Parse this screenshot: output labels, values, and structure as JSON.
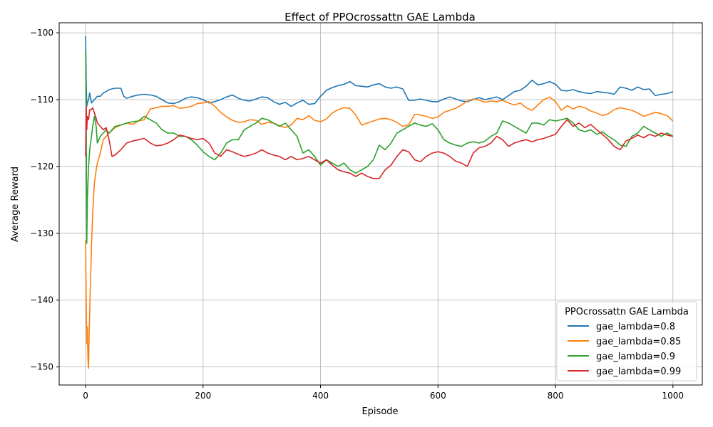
{
  "chart_data": {
    "type": "line",
    "title": "Effect of PPOcrossattn GAE Lambda",
    "xlabel": "Episode",
    "ylabel": "Average Reward",
    "xlim": [
      -45,
      1050
    ],
    "ylim": [
      -152.7,
      -98.5
    ],
    "xticks": [
      0,
      200,
      400,
      600,
      800,
      1000
    ],
    "xtick_labels": [
      "0",
      "200",
      "400",
      "600",
      "800",
      "1000"
    ],
    "yticks": [
      -150,
      -140,
      -130,
      -120,
      -110,
      -100
    ],
    "ytick_labels": [
      "−150",
      "−140",
      "−130",
      "−120",
      "−110",
      "−100"
    ],
    "grid": true,
    "legend": {
      "title": "PPOcrossattn GAE Lambda",
      "position": "lower-right"
    },
    "series": [
      {
        "name": "gae_lambda=0.8",
        "color": "#1f77b4",
        "x": [
          0,
          1,
          2,
          3,
          5,
          7,
          10,
          15,
          20,
          25,
          30,
          35,
          40,
          50,
          60,
          65,
          70,
          80,
          90,
          100,
          110,
          120,
          130,
          140,
          150,
          160,
          170,
          180,
          190,
          200,
          210,
          220,
          230,
          240,
          250,
          260,
          270,
          280,
          290,
          300,
          310,
          320,
          330,
          340,
          350,
          360,
          370,
          380,
          390,
          400,
          410,
          420,
          430,
          440,
          450,
          460,
          470,
          480,
          490,
          500,
          510,
          520,
          530,
          540,
          550,
          560,
          570,
          580,
          590,
          600,
          610,
          620,
          630,
          640,
          650,
          660,
          670,
          680,
          690,
          700,
          710,
          720,
          730,
          740,
          750,
          760,
          770,
          780,
          790,
          800,
          810,
          820,
          830,
          840,
          850,
          860,
          870,
          880,
          890,
          900,
          910,
          920,
          930,
          940,
          950,
          960,
          970,
          980,
          990,
          1000
        ],
        "y": [
          -100.5,
          -107.0,
          -111.0,
          -110.5,
          -110.0,
          -109.0,
          -110.5,
          -110.0,
          -109.5,
          -109.5,
          -109.0,
          -108.8,
          -108.5,
          -108.3,
          -108.3,
          -109.5,
          -109.8,
          -109.5,
          -109.3,
          -109.2,
          -109.3,
          -109.5,
          -110.0,
          -110.5,
          -110.6,
          -110.3,
          -109.8,
          -109.6,
          -109.7,
          -110.0,
          -110.5,
          -110.3,
          -110.0,
          -109.6,
          -109.3,
          -109.8,
          -110.1,
          -110.2,
          -109.9,
          -109.6,
          -109.7,
          -110.3,
          -110.7,
          -110.4,
          -111.0,
          -110.5,
          -110.1,
          -110.7,
          -110.6,
          -109.5,
          -108.6,
          -108.2,
          -107.9,
          -107.7,
          -107.3,
          -107.9,
          -108.0,
          -108.1,
          -107.8,
          -107.6,
          -108.1,
          -108.3,
          -108.1,
          -108.4,
          -110.1,
          -110.1,
          -109.9,
          -110.1,
          -110.3,
          -110.3,
          -109.9,
          -109.6,
          -109.9,
          -110.2,
          -110.3,
          -110.0,
          -109.7,
          -110.0,
          -109.8,
          -109.6,
          -110.0,
          -109.4,
          -108.8,
          -108.6,
          -108.0,
          -107.1,
          -107.8,
          -107.6,
          -107.3,
          -107.7,
          -108.6,
          -108.7,
          -108.5,
          -108.8,
          -109.0,
          -109.1,
          -108.8,
          -108.9,
          -109.0,
          -109.2,
          -108.1,
          -108.3,
          -108.6,
          -108.1,
          -108.5,
          -108.4,
          -109.4,
          -109.2,
          -109.1,
          -108.8
        ]
      },
      {
        "name": "gae_lambda=0.85",
        "color": "#ff7f0e",
        "x": [
          0,
          1,
          2,
          3,
          4,
          5,
          6,
          8,
          10,
          12,
          15,
          18,
          20,
          25,
          30,
          40,
          50,
          60,
          70,
          80,
          90,
          100,
          110,
          120,
          130,
          140,
          150,
          160,
          170,
          180,
          190,
          200,
          210,
          220,
          230,
          240,
          250,
          260,
          270,
          280,
          290,
          300,
          310,
          320,
          330,
          340,
          350,
          360,
          370,
          380,
          390,
          400,
          410,
          420,
          430,
          440,
          450,
          460,
          470,
          480,
          490,
          500,
          510,
          520,
          530,
          540,
          550,
          560,
          570,
          580,
          590,
          600,
          610,
          620,
          630,
          640,
          650,
          660,
          670,
          680,
          690,
          700,
          710,
          720,
          730,
          740,
          750,
          760,
          770,
          780,
          790,
          800,
          810,
          820,
          830,
          840,
          850,
          860,
          870,
          880,
          890,
          900,
          910,
          920,
          930,
          940,
          950,
          960,
          970,
          980,
          990,
          1000
        ],
        "y": [
          -131.0,
          -140.0,
          -146.5,
          -144.0,
          -149.0,
          -150.2,
          -145.0,
          -138.0,
          -132.0,
          -127.0,
          -122.5,
          -120.5,
          -119.5,
          -118.0,
          -116.0,
          -115.0,
          -114.2,
          -113.8,
          -113.5,
          -113.7,
          -113.2,
          -113.0,
          -111.4,
          -111.2,
          -111.0,
          -111.0,
          -110.9,
          -111.3,
          -111.2,
          -111.0,
          -110.6,
          -110.5,
          -110.3,
          -111.0,
          -111.9,
          -112.6,
          -113.1,
          -113.4,
          -113.3,
          -113.0,
          -113.1,
          -113.7,
          -113.4,
          -113.5,
          -113.9,
          -114.2,
          -113.8,
          -112.8,
          -113.0,
          -112.4,
          -113.1,
          -113.3,
          -112.9,
          -112.0,
          -111.5,
          -111.2,
          -111.3,
          -112.3,
          -113.8,
          -113.5,
          -113.2,
          -112.9,
          -112.8,
          -113.0,
          -113.4,
          -114.0,
          -113.8,
          -112.2,
          -112.3,
          -112.5,
          -112.8,
          -112.6,
          -111.9,
          -111.6,
          -111.3,
          -110.8,
          -110.2,
          -109.9,
          -110.1,
          -110.4,
          -110.2,
          -110.3,
          -110.1,
          -110.5,
          -110.8,
          -110.5,
          -111.2,
          -111.6,
          -110.8,
          -110.0,
          -109.6,
          -110.3,
          -111.6,
          -110.9,
          -111.4,
          -111.0,
          -111.2,
          -111.7,
          -112.0,
          -112.4,
          -112.1,
          -111.5,
          -111.2,
          -111.4,
          -111.6,
          -112.0,
          -112.5,
          -112.2,
          -111.9,
          -112.1,
          -112.4,
          -113.2
        ]
      },
      {
        "name": "gae_lambda=0.9",
        "color": "#2ca02c",
        "x": [
          0,
          1,
          2,
          3,
          5,
          7,
          10,
          12,
          15,
          18,
          20,
          25,
          30,
          35,
          40,
          50,
          60,
          70,
          80,
          90,
          100,
          110,
          120,
          130,
          140,
          150,
          160,
          170,
          180,
          190,
          200,
          210,
          220,
          230,
          240,
          250,
          260,
          270,
          280,
          290,
          300,
          310,
          320,
          330,
          340,
          350,
          360,
          370,
          380,
          390,
          400,
          410,
          420,
          430,
          440,
          450,
          460,
          470,
          480,
          490,
          500,
          510,
          520,
          530,
          540,
          550,
          560,
          570,
          580,
          590,
          600,
          610,
          620,
          630,
          640,
          650,
          660,
          670,
          680,
          690,
          700,
          710,
          720,
          730,
          740,
          750,
          760,
          770,
          780,
          790,
          800,
          810,
          820,
          830,
          840,
          850,
          860,
          870,
          880,
          890,
          900,
          910,
          920,
          930,
          940,
          950,
          960,
          970,
          980,
          990,
          1000
        ],
        "y": [
          -102.8,
          -112.0,
          -131.5,
          -125.0,
          -120.0,
          -117.5,
          -115.5,
          -114.0,
          -112.5,
          -114.0,
          -116.5,
          -115.5,
          -115.0,
          -114.5,
          -115.0,
          -114.0,
          -113.8,
          -113.5,
          -113.3,
          -113.2,
          -112.5,
          -113.0,
          -113.5,
          -114.5,
          -115.0,
          -115.0,
          -115.5,
          -115.5,
          -116.0,
          -116.8,
          -117.8,
          -118.5,
          -119.0,
          -118.0,
          -116.5,
          -116.0,
          -116.0,
          -114.5,
          -114.0,
          -113.5,
          -112.8,
          -113.0,
          -113.5,
          -114.0,
          -113.5,
          -114.5,
          -115.5,
          -118.0,
          -117.5,
          -118.5,
          -119.8,
          -119.0,
          -119.5,
          -120.0,
          -119.5,
          -120.5,
          -121.0,
          -120.5,
          -120.0,
          -119.0,
          -116.8,
          -117.5,
          -116.5,
          -115.0,
          -114.5,
          -114.0,
          -113.5,
          -113.8,
          -114.0,
          -113.6,
          -114.5,
          -116.0,
          -116.5,
          -116.8,
          -117.0,
          -116.5,
          -116.3,
          -116.5,
          -116.2,
          -115.5,
          -115.0,
          -113.2,
          -113.5,
          -114.0,
          -114.5,
          -115.0,
          -113.5,
          -113.5,
          -113.8,
          -113.0,
          -113.2,
          -113.0,
          -112.8,
          -113.5,
          -114.5,
          -114.8,
          -114.5,
          -115.2,
          -114.8,
          -115.5,
          -116.0,
          -116.8,
          -117.0,
          -115.5,
          -115.0,
          -114.0,
          -114.5,
          -115.0,
          -115.5,
          -115.0,
          -115.5
        ]
      },
      {
        "name": "gae_lambda=0.99",
        "color": "#d62728",
        "x": [
          0,
          1,
          2,
          3,
          5,
          7,
          10,
          12,
          15,
          18,
          20,
          25,
          30,
          35,
          40,
          45,
          50,
          60,
          70,
          80,
          90,
          100,
          110,
          120,
          130,
          140,
          150,
          160,
          170,
          180,
          190,
          200,
          210,
          220,
          230,
          240,
          250,
          260,
          270,
          280,
          290,
          300,
          310,
          320,
          330,
          340,
          350,
          360,
          370,
          380,
          390,
          400,
          410,
          420,
          430,
          440,
          450,
          460,
          470,
          480,
          490,
          500,
          510,
          520,
          530,
          540,
          550,
          560,
          570,
          580,
          590,
          600,
          610,
          620,
          630,
          640,
          650,
          660,
          670,
          680,
          690,
          700,
          710,
          720,
          730,
          740,
          750,
          760,
          770,
          780,
          790,
          800,
          810,
          820,
          830,
          840,
          850,
          860,
          870,
          880,
          890,
          900,
          910,
          920,
          930,
          940,
          950,
          960,
          970,
          980,
          990,
          1000
        ],
        "y": [
          -118.5,
          -111.0,
          -114.5,
          -112.5,
          -113.0,
          -111.5,
          -111.5,
          -111.2,
          -112.0,
          -112.8,
          -113.5,
          -114.0,
          -114.5,
          -114.2,
          -116.0,
          -118.5,
          -118.3,
          -117.5,
          -116.5,
          -116.2,
          -116.0,
          -115.8,
          -116.5,
          -116.9,
          -116.8,
          -116.5,
          -116.0,
          -115.3,
          -115.5,
          -115.8,
          -116.0,
          -115.8,
          -116.5,
          -118.0,
          -118.5,
          -117.5,
          -117.8,
          -118.2,
          -118.5,
          -118.3,
          -118.0,
          -117.5,
          -118.0,
          -118.3,
          -118.5,
          -119.0,
          -118.5,
          -119.0,
          -118.8,
          -118.5,
          -119.0,
          -119.5,
          -119.0,
          -119.8,
          -120.5,
          -120.8,
          -121.0,
          -121.5,
          -121.0,
          -121.5,
          -121.8,
          -121.8,
          -120.5,
          -119.8,
          -118.5,
          -117.5,
          -117.8,
          -119.0,
          -119.3,
          -118.5,
          -118.0,
          -117.8,
          -118.0,
          -118.5,
          -119.2,
          -119.5,
          -120.0,
          -118.0,
          -117.2,
          -117.0,
          -116.5,
          -115.5,
          -116.0,
          -117.0,
          -116.5,
          -116.2,
          -116.0,
          -116.3,
          -116.0,
          -115.8,
          -115.5,
          -115.2,
          -114.0,
          -113.0,
          -114.0,
          -113.5,
          -114.2,
          -113.7,
          -114.5,
          -115.2,
          -116.0,
          -117.0,
          -117.5,
          -116.2,
          -115.8,
          -115.3,
          -115.7,
          -115.2,
          -115.5,
          -115.0,
          -115.3,
          -115.5
        ]
      }
    ]
  }
}
